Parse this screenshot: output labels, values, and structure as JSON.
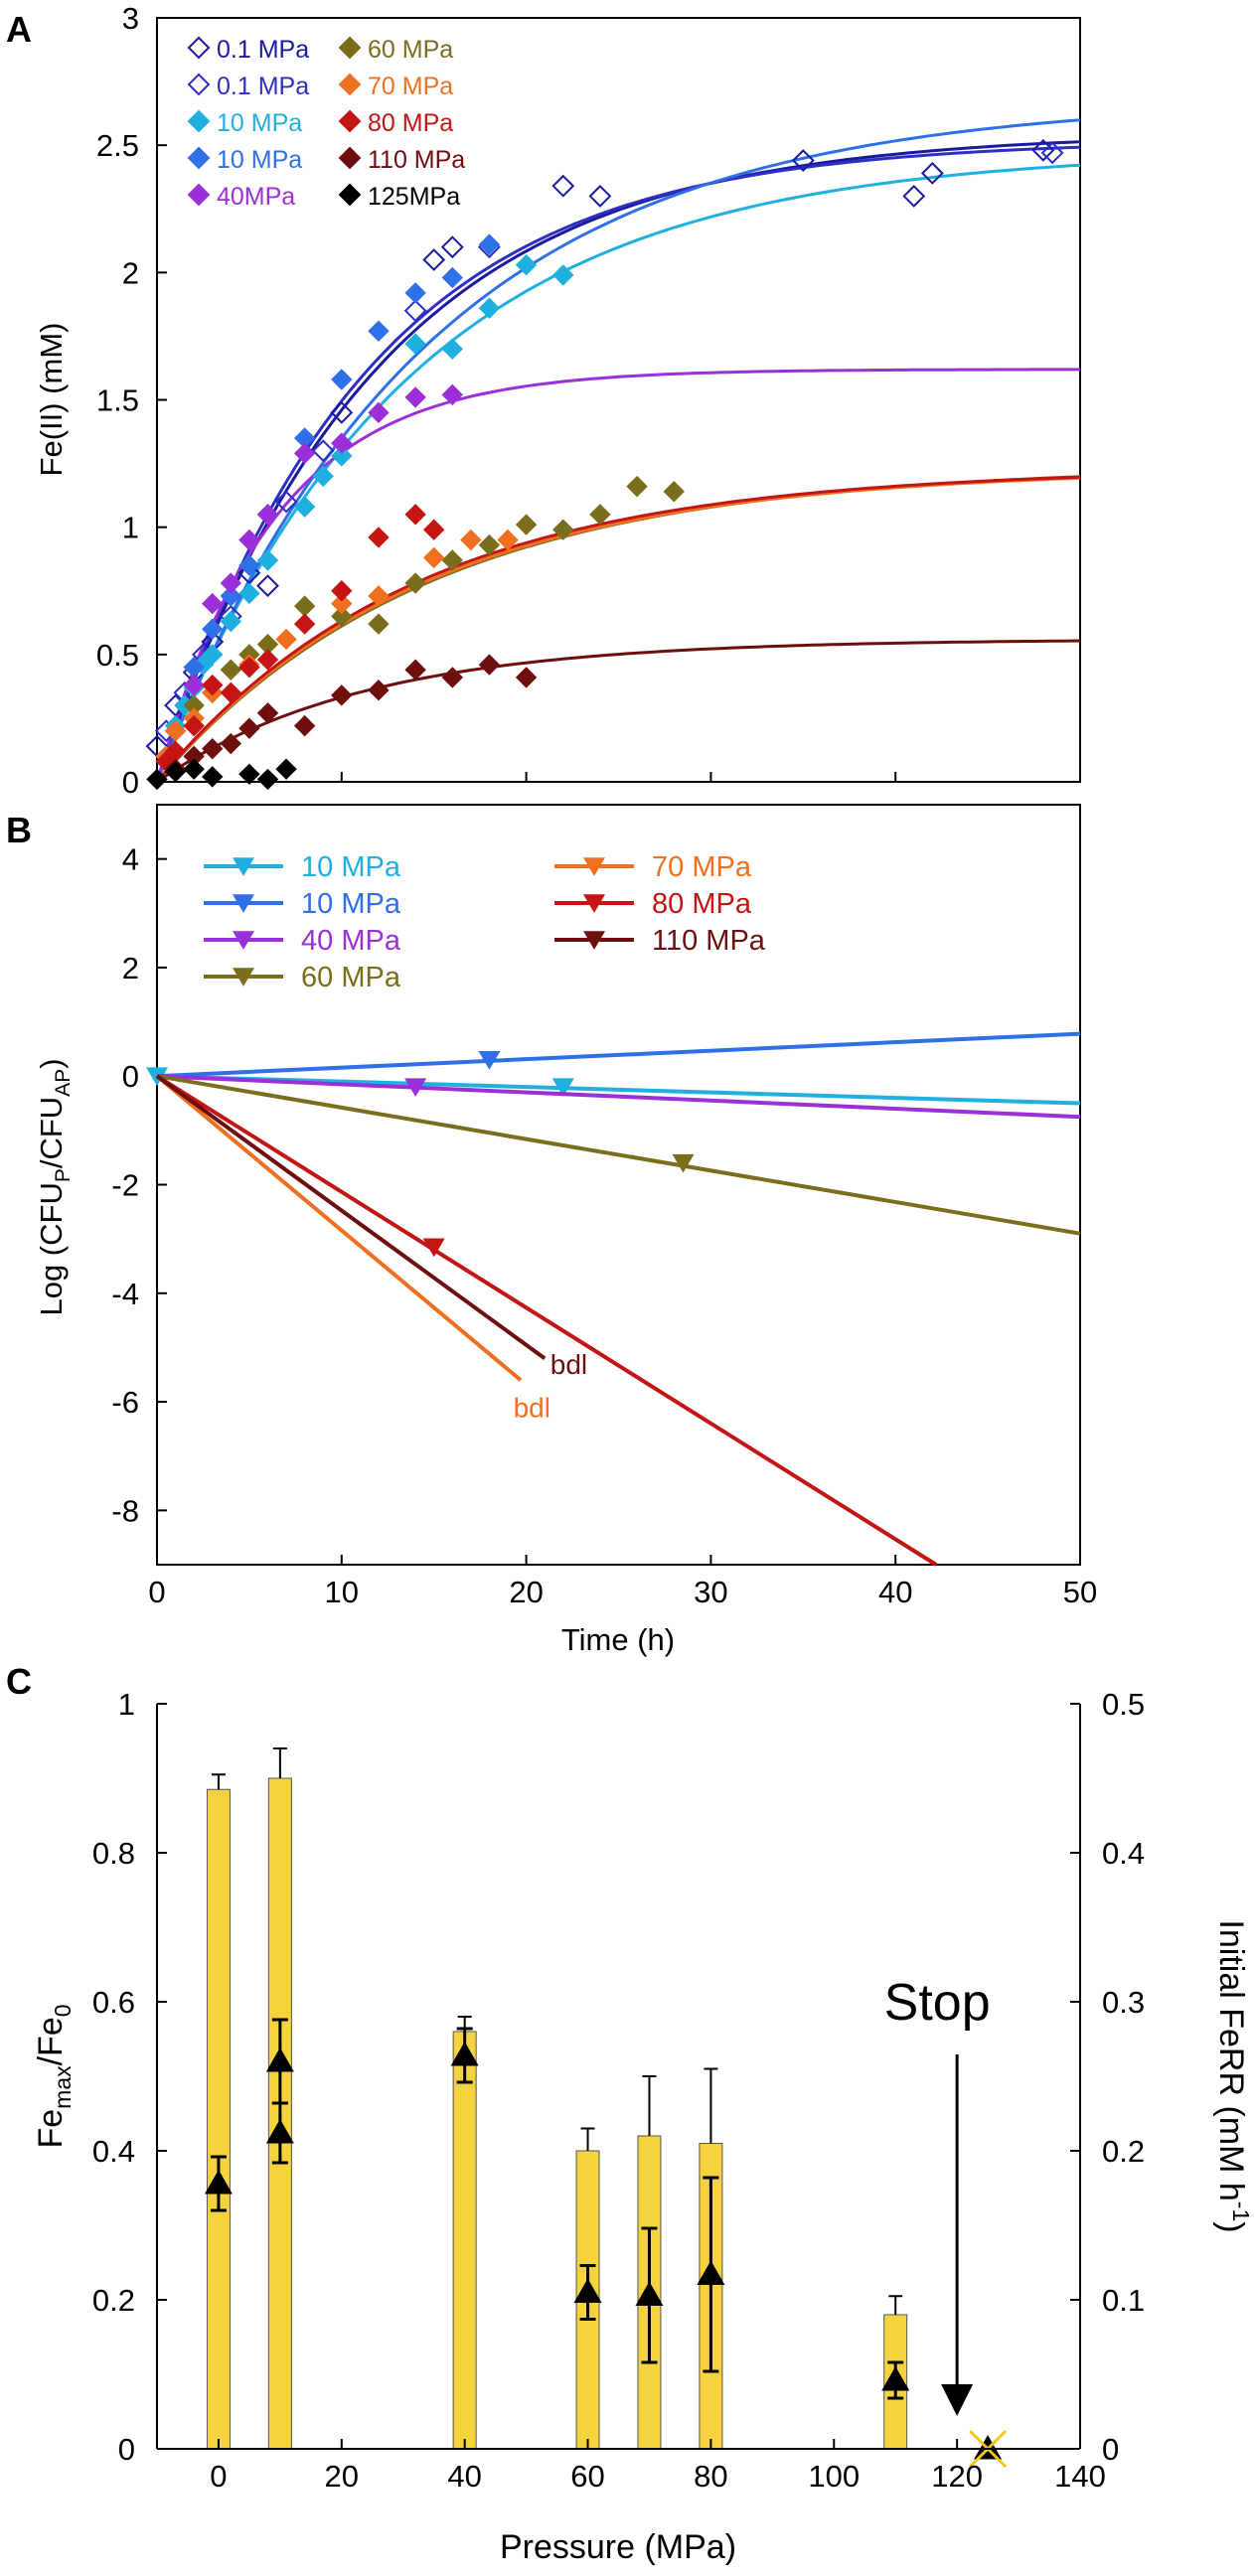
{
  "panels": [
    {
      "label": "A",
      "type": "scatter+line",
      "xlim": [
        0,
        50
      ],
      "ylim": [
        0,
        3
      ],
      "yticks": [
        "0",
        "0.5",
        "1",
        "1.5",
        "2",
        "2.5",
        "3"
      ],
      "ylabel": "Fe(II) (mM)",
      "legend": [
        {
          "label": "0.1 MPa",
          "color": "#1a1a9c",
          "marker": "diamond-open"
        },
        {
          "label": "0.1 MPa",
          "color": "#2e2ec4",
          "marker": "diamond-open"
        },
        {
          "label": "10 MPa",
          "color": "#1fb0e0",
          "marker": "diamond"
        },
        {
          "label": "10 MPa",
          "color": "#2f6fe8",
          "marker": "diamond"
        },
        {
          "label": "40MPa",
          "color": "#9b30d9",
          "marker": "diamond"
        },
        {
          "label": "60 MPa",
          "color": "#7a6d1c",
          "marker": "diamond"
        },
        {
          "label": "70 MPa",
          "color": "#f07020",
          "marker": "diamond"
        },
        {
          "label": "80 MPa",
          "color": "#c41414",
          "marker": "diamond"
        },
        {
          "label": "110 MPa",
          "color": "#6e0f0f",
          "marker": "diamond"
        },
        {
          "label": "125MPa",
          "color": "#000000",
          "marker": "diamond"
        }
      ],
      "series": [
        {
          "name": "0.1 MPa",
          "color": "#1a1a9c",
          "open": true,
          "x": [
            0,
            1,
            2,
            3,
            5,
            6,
            10,
            15,
            16,
            22,
            24,
            35,
            41,
            42,
            48
          ],
          "y": [
            0.14,
            0.3,
            0.43,
            0.55,
            0.82,
            0.77,
            1.45,
            2.05,
            2.1,
            2.34,
            2.3,
            2.44,
            2.3,
            2.39,
            2.48
          ],
          "fit": {
            "max": 2.55,
            "k": 0.085
          }
        },
        {
          "name": "0.1 MPa",
          "color": "#2e2ec4",
          "open": true,
          "x": [
            0.5,
            1.5,
            2.5,
            4,
            7,
            9,
            14,
            18,
            48.5
          ],
          "y": [
            0.2,
            0.35,
            0.5,
            0.65,
            1.1,
            1.3,
            1.85,
            2.1,
            2.47
          ],
          "fit": {
            "max": 2.52,
            "k": 0.09
          }
        },
        {
          "name": "10 MPa",
          "color": "#1fb0e0",
          "open": false,
          "x": [
            0.5,
            1,
            1.5,
            2,
            2.5,
            3,
            4,
            5,
            6,
            8,
            9,
            10,
            14,
            16,
            18,
            20,
            22
          ],
          "y": [
            0.1,
            0.22,
            0.3,
            0.37,
            0.46,
            0.5,
            0.63,
            0.74,
            0.87,
            1.08,
            1.2,
            1.28,
            1.72,
            1.7,
            1.86,
            2.03,
            1.99
          ],
          "fit": {
            "max": 2.48,
            "k": 0.075
          }
        },
        {
          "name": "10 MPa",
          "color": "#2f6fe8",
          "open": false,
          "x": [
            0.5,
            1,
            2,
            3,
            4,
            5,
            6,
            8,
            10,
            12,
            14,
            16,
            18
          ],
          "y": [
            0.08,
            0.2,
            0.45,
            0.6,
            0.73,
            0.85,
            1.05,
            1.35,
            1.58,
            1.77,
            1.92,
            1.98,
            2.11
          ],
          "fit": {
            "max": 2.68,
            "k": 0.07
          }
        },
        {
          "name": "40MPa",
          "color": "#9b30d9",
          "open": false,
          "x": [
            0.5,
            1,
            2,
            3,
            4,
            5,
            6,
            8,
            10,
            12,
            14,
            16
          ],
          "y": [
            0.1,
            0.2,
            0.38,
            0.7,
            0.78,
            0.95,
            1.05,
            1.29,
            1.33,
            1.45,
            1.51,
            1.52
          ],
          "fit": {
            "max": 1.62,
            "k": 0.16
          }
        },
        {
          "name": "60 MPa",
          "color": "#7a6d1c",
          "open": false,
          "x": [
            2,
            3,
            4,
            5,
            6,
            8,
            10,
            12,
            14,
            16,
            18,
            20,
            22,
            24,
            26,
            28
          ],
          "y": [
            0.3,
            0.35,
            0.44,
            0.5,
            0.54,
            0.69,
            0.65,
            0.62,
            0.78,
            0.87,
            0.93,
            1.01,
            0.99,
            1.05,
            1.16,
            1.14
          ],
          "fit": {
            "max": 1.24,
            "k": 0.068
          }
        },
        {
          "name": "70 MPa",
          "color": "#f07020",
          "open": false,
          "x": [
            0.5,
            1,
            2,
            3,
            5,
            7,
            10,
            12,
            15,
            17,
            19
          ],
          "y": [
            0.1,
            0.2,
            0.25,
            0.35,
            0.46,
            0.56,
            0.7,
            0.73,
            0.88,
            0.95,
            0.95
          ],
          "fit": {
            "max": 1.23,
            "k": 0.07
          }
        },
        {
          "name": "80 MPa",
          "color": "#c41414",
          "open": false,
          "x": [
            0.5,
            1,
            2,
            3,
            4,
            5,
            6,
            8,
            10,
            12,
            14,
            15
          ],
          "y": [
            0.08,
            0.12,
            0.22,
            0.38,
            0.35,
            0.45,
            0.48,
            0.62,
            0.75,
            0.96,
            1.05,
            0.99
          ],
          "fit": {
            "max": 1.23,
            "k": 0.072
          }
        },
        {
          "name": "110 MPa",
          "color": "#6e0f0f",
          "open": false,
          "x": [
            1,
            2,
            3,
            4,
            5,
            6,
            8,
            10,
            12,
            14,
            16,
            18,
            20
          ],
          "y": [
            0.05,
            0.1,
            0.13,
            0.15,
            0.21,
            0.27,
            0.22,
            0.34,
            0.36,
            0.44,
            0.41,
            0.46,
            0.41
          ],
          "fit": {
            "max": 0.56,
            "k": 0.09
          }
        },
        {
          "name": "125MPa",
          "color": "#000000",
          "open": false,
          "x": [
            0,
            1,
            2,
            3,
            5,
            6,
            7
          ],
          "y": [
            0.01,
            0.04,
            0.05,
            0.02,
            0.03,
            0.01,
            0.05
          ],
          "fit": null
        }
      ]
    },
    {
      "label": "B",
      "type": "line",
      "xlim": [
        0,
        50
      ],
      "ylim": [
        -9,
        5
      ],
      "xticks": [
        "0",
        "10",
        "20",
        "30",
        "40",
        "50"
      ],
      "yticks": [
        "-8",
        "-6",
        "-4",
        "-2",
        "0",
        "2",
        "4"
      ],
      "xlabel": "Time (h)",
      "ylabel_main": "Log (CFU",
      "ylabel_sub1": "P",
      "ylabel_mid": "/CFU",
      "ylabel_sub2": "AP",
      "ylabel_end": ")",
      "legend": [
        {
          "label": "10 MPa",
          "color": "#1fb0e0"
        },
        {
          "label": "10 MPa",
          "color": "#2f6fe8"
        },
        {
          "label": "40 MPa",
          "color": "#9b30d9"
        },
        {
          "label": "60 MPa",
          "color": "#7a6d1c"
        },
        {
          "label": "70 MPa",
          "color": "#f07020"
        },
        {
          "label": "80 MPa",
          "color": "#c41414"
        },
        {
          "label": "110 MPa",
          "color": "#6e0f0f"
        }
      ],
      "series": [
        {
          "name": "10 MPa",
          "color": "#1fb0e0",
          "line_x": [
            0,
            50
          ],
          "line_y": [
            0,
            -0.5
          ],
          "markers_x": [
            0,
            22
          ],
          "markers_y": [
            0,
            -0.2
          ]
        },
        {
          "name": "10 MPa",
          "color": "#2f6fe8",
          "line_x": [
            0,
            50
          ],
          "line_y": [
            0,
            0.78
          ],
          "markers_x": [
            18
          ],
          "markers_y": [
            0.3
          ]
        },
        {
          "name": "40 MPa",
          "color": "#9b30d9",
          "line_x": [
            0,
            50
          ],
          "line_y": [
            0,
            -0.75
          ],
          "markers_x": [
            14
          ],
          "markers_y": [
            -0.2
          ]
        },
        {
          "name": "60 MPa",
          "color": "#7a6d1c",
          "line_x": [
            0,
            50
          ],
          "line_y": [
            0,
            -2.9
          ],
          "markers_x": [
            28.5
          ],
          "markers_y": [
            -1.6
          ]
        },
        {
          "name": "70 MPa",
          "color": "#f07020",
          "line_x": [
            0,
            19.7
          ],
          "line_y": [
            0,
            -5.6
          ],
          "markers_x": [],
          "markers_y": []
        },
        {
          "name": "80 MPa",
          "color": "#c41414",
          "line_x": [
            0,
            42.2
          ],
          "line_y": [
            0,
            -9
          ],
          "markers_x": [
            15
          ],
          "markers_y": [
            -3.15
          ]
        },
        {
          "name": "110 MPa",
          "color": "#6e0f0f",
          "line_x": [
            0,
            21
          ],
          "line_y": [
            0,
            -5.2
          ],
          "markers_x": [],
          "markers_y": []
        }
      ],
      "annotations": [
        {
          "text": "bdl",
          "color": "#6e0f0f",
          "x": 21.3,
          "y": -5.3
        },
        {
          "text": "bdl",
          "color": "#f07020",
          "x": 19.3,
          "y": -6.1
        }
      ]
    },
    {
      "label": "C",
      "type": "bar+scatter",
      "xlim": [
        -10,
        140
      ],
      "ylim_left": [
        0,
        1
      ],
      "ylim_right": [
        0,
        0.5
      ],
      "xticks": [
        "0",
        "20",
        "40",
        "60",
        "80",
        "100",
        "120",
        "140"
      ],
      "yticks_left": [
        "0",
        "0.2",
        "0.4",
        "0.6",
        "0.8",
        "1"
      ],
      "yticks_right": [
        "0",
        "0.1",
        "0.2",
        "0.3",
        "0.4",
        "0.5"
      ],
      "xlabel": "Pressure (MPa)",
      "ylabel_left_main": "Fe",
      "ylabel_left_sub1": "max",
      "ylabel_left_mid": "/Fe",
      "ylabel_left_sub2": "0",
      "ylabel_right_main": "Initial FeRR (mM h",
      "ylabel_right_sup": "-1",
      "ylabel_right_end": ")",
      "bar_color": "#f5d33f",
      "bars": [
        {
          "x": 0,
          "value": 0.885,
          "err": 0.02
        },
        {
          "x": 10,
          "value": 0.9,
          "err": 0.04
        },
        {
          "x": 40,
          "value": 0.56,
          "err": 0.02
        },
        {
          "x": 60,
          "value": 0.4,
          "err": 0.03
        },
        {
          "x": 70,
          "value": 0.42,
          "err": 0.08
        },
        {
          "x": 80,
          "value": 0.41,
          "err": 0.1
        },
        {
          "x": 110,
          "value": 0.18,
          "err": 0.025
        }
      ],
      "rates": [
        {
          "x": 0,
          "value": 0.178,
          "err": 0.018
        },
        {
          "x": 10,
          "value": 0.212,
          "err": 0.02
        },
        {
          "x": 10,
          "value": 0.26,
          "err": 0.028
        },
        {
          "x": 40,
          "value": 0.264,
          "err": 0.018
        },
        {
          "x": 60,
          "value": 0.105,
          "err": 0.018
        },
        {
          "x": 70,
          "value": 0.103,
          "err": 0.045
        },
        {
          "x": 80,
          "value": 0.117,
          "err": 0.065
        },
        {
          "x": 110,
          "value": 0.046,
          "err": 0.012
        },
        {
          "x": 125,
          "value": 0,
          "err": 0
        }
      ],
      "stop_label": "Stop",
      "stop_x": 120,
      "stop_cross_x": 125,
      "stop_cross_color": "#f5c518"
    }
  ]
}
